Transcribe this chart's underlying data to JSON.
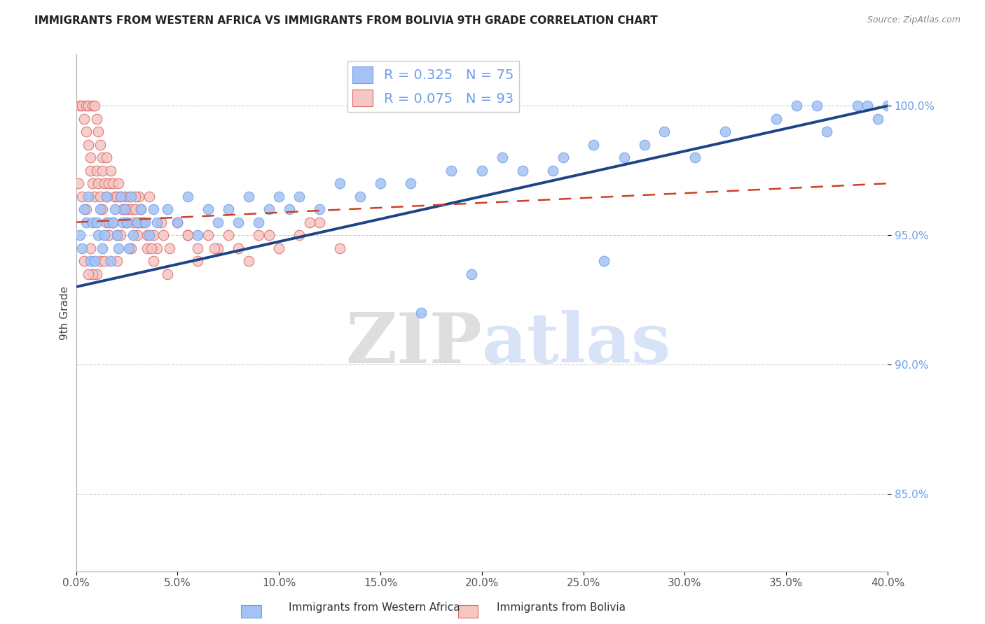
{
  "title": "IMMIGRANTS FROM WESTERN AFRICA VS IMMIGRANTS FROM BOLIVIA 9TH GRADE CORRELATION CHART",
  "source": "Source: ZipAtlas.com",
  "ylabel": "9th Grade",
  "xlim": [
    0.0,
    40.0
  ],
  "ylim": [
    82.0,
    102.0
  ],
  "yticks": [
    85.0,
    90.0,
    95.0,
    100.0
  ],
  "xticks": [
    0.0,
    5.0,
    10.0,
    15.0,
    20.0,
    25.0,
    30.0,
    35.0,
    40.0
  ],
  "blue_R": 0.325,
  "blue_N": 75,
  "pink_R": 0.075,
  "pink_N": 93,
  "blue_color": "#a4c2f4",
  "pink_color": "#f4c7c3",
  "blue_edge_color": "#6d9eeb",
  "pink_edge_color": "#e06666",
  "blue_line_color": "#1c4587",
  "pink_line_color": "#cc4125",
  "watermark_zip": "ZIP",
  "watermark_atlas": "atlas",
  "blue_line_x0": 0.0,
  "blue_line_y0": 93.0,
  "blue_line_x1": 40.0,
  "blue_line_y1": 100.0,
  "pink_line_x0": 0.0,
  "pink_line_y0": 95.5,
  "pink_line_x1": 40.0,
  "pink_line_y1": 97.0,
  "blue_scatter_x": [
    0.2,
    0.3,
    0.4,
    0.5,
    0.6,
    0.7,
    0.8,
    0.9,
    1.0,
    1.1,
    1.2,
    1.3,
    1.4,
    1.5,
    1.6,
    1.7,
    1.8,
    1.9,
    2.0,
    2.1,
    2.2,
    2.3,
    2.4,
    2.5,
    2.6,
    2.7,
    2.8,
    3.0,
    3.2,
    3.4,
    3.6,
    3.8,
    4.0,
    4.5,
    5.0,
    5.5,
    6.0,
    6.5,
    7.0,
    7.5,
    8.0,
    8.5,
    9.0,
    9.5,
    10.0,
    10.5,
    11.0,
    12.0,
    13.0,
    14.0,
    15.0,
    16.5,
    18.5,
    20.0,
    21.0,
    22.0,
    23.5,
    24.0,
    25.5,
    27.0,
    28.0,
    29.0,
    30.5,
    32.0,
    34.5,
    35.5,
    36.5,
    37.0,
    38.5,
    39.0,
    39.5,
    40.0,
    17.0,
    19.5,
    26.0
  ],
  "blue_scatter_y": [
    95.0,
    94.5,
    96.0,
    95.5,
    96.5,
    94.0,
    95.5,
    94.0,
    95.5,
    95.0,
    96.0,
    94.5,
    95.0,
    96.5,
    95.5,
    94.0,
    95.5,
    96.0,
    95.0,
    94.5,
    96.5,
    95.5,
    96.0,
    95.5,
    94.5,
    96.5,
    95.0,
    95.5,
    96.0,
    95.5,
    95.0,
    96.0,
    95.5,
    96.0,
    95.5,
    96.5,
    95.0,
    96.0,
    95.5,
    96.0,
    95.5,
    96.5,
    95.5,
    96.0,
    96.5,
    96.0,
    96.5,
    96.0,
    97.0,
    96.5,
    97.0,
    97.0,
    97.5,
    97.5,
    98.0,
    97.5,
    97.5,
    98.0,
    98.5,
    98.0,
    98.5,
    99.0,
    98.0,
    99.0,
    99.5,
    100.0,
    100.0,
    99.0,
    100.0,
    100.0,
    99.5,
    100.0,
    92.0,
    93.5,
    94.0
  ],
  "pink_scatter_x": [
    0.1,
    0.2,
    0.3,
    0.4,
    0.5,
    0.5,
    0.6,
    0.6,
    0.7,
    0.7,
    0.8,
    0.8,
    0.9,
    0.9,
    1.0,
    1.0,
    1.1,
    1.1,
    1.2,
    1.2,
    1.3,
    1.3,
    1.4,
    1.5,
    1.5,
    1.6,
    1.7,
    1.8,
    1.9,
    2.0,
    2.1,
    2.2,
    2.3,
    2.4,
    2.5,
    2.6,
    2.7,
    2.8,
    2.9,
    3.0,
    3.1,
    3.2,
    3.3,
    3.5,
    3.6,
    3.8,
    4.0,
    4.3,
    4.6,
    5.0,
    5.5,
    6.0,
    6.5,
    7.0,
    7.5,
    8.0,
    9.0,
    10.0,
    11.0,
    12.0,
    2.0,
    2.5,
    3.0,
    3.5,
    1.5,
    2.0,
    1.0,
    1.2,
    0.8,
    1.4,
    0.6,
    0.4,
    1.6,
    1.8,
    2.2,
    2.7,
    0.3,
    1.3,
    3.8,
    4.5,
    6.0,
    3.2,
    0.7,
    0.5,
    2.9,
    3.7,
    4.2,
    5.5,
    6.8,
    8.5,
    9.5,
    11.5,
    13.0
  ],
  "pink_scatter_y": [
    97.0,
    100.0,
    100.0,
    99.5,
    100.0,
    99.0,
    100.0,
    98.5,
    98.0,
    97.5,
    97.0,
    100.0,
    100.0,
    96.5,
    97.5,
    99.5,
    99.0,
    97.0,
    96.5,
    98.5,
    98.0,
    97.5,
    97.0,
    96.5,
    98.0,
    97.0,
    97.5,
    97.0,
    96.5,
    96.5,
    97.0,
    96.5,
    96.0,
    96.5,
    96.0,
    96.5,
    96.0,
    95.5,
    96.0,
    95.5,
    96.5,
    96.0,
    95.5,
    95.0,
    96.5,
    95.0,
    94.5,
    95.0,
    94.5,
    95.5,
    95.0,
    94.5,
    95.0,
    94.5,
    95.0,
    94.5,
    95.0,
    94.5,
    95.0,
    95.5,
    95.0,
    95.5,
    95.0,
    94.5,
    95.5,
    94.0,
    93.5,
    94.0,
    93.5,
    94.0,
    93.5,
    94.0,
    95.0,
    95.5,
    95.0,
    94.5,
    96.5,
    96.0,
    94.0,
    93.5,
    94.0,
    95.5,
    94.5,
    96.0,
    96.5,
    94.5,
    95.5,
    95.0,
    94.5,
    94.0,
    95.0,
    95.5,
    94.5
  ]
}
